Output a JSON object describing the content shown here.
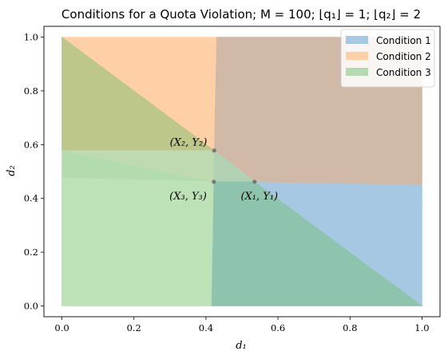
{
  "chart_data": {
    "type": "area",
    "title": "Conditions for a Quota Violation; M = 100; ⌊q₁⌋ = 1; ⌊q₂⌋ = 2",
    "xlabel": "d₁",
    "ylabel": "d₂",
    "xlim": [
      -0.05,
      1.05
    ],
    "ylim": [
      -0.04,
      1.04
    ],
    "x_ticks": [
      0.0,
      0.2,
      0.4,
      0.6,
      0.8,
      1.0
    ],
    "y_ticks": [
      0.0,
      0.2,
      0.4,
      0.6,
      0.8,
      1.0
    ],
    "x_tick_labels": [
      "0.0",
      "0.2",
      "0.4",
      "0.6",
      "0.8",
      "1.0"
    ],
    "y_tick_labels": [
      "0.0",
      "0.2",
      "0.4",
      "0.6",
      "0.8",
      "1.0"
    ],
    "grid": false,
    "legend_position": "top-right",
    "series": [
      {
        "name": "Condition 1",
        "color": "#a6c8e3",
        "polygons": [
          [
            [
              0.535,
              0.462
            ],
            [
              1.0,
              0.451
            ],
            [
              1.0,
              0.0
            ]
          ]
        ]
      },
      {
        "name": "Condition 2",
        "color": "#ffcfa5",
        "polygons": [
          [
            [
              0.0,
              1.0
            ],
            [
              0.43,
              1.0
            ],
            [
              0.423,
              0.578
            ],
            [
              0.0,
              0.578
            ]
          ]
        ]
      },
      {
        "name": "Condition 3",
        "color": "#b3dcae",
        "polygons": [
          [
            [
              0.0,
              1.0
            ],
            [
              0.535,
              0.462
            ],
            [
              1.0,
              0.0
            ],
            [
              0.0,
              0.0
            ]
          ]
        ]
      },
      {
        "name": "",
        "color": "#d0b9a6",
        "polygons": [
          [
            [
              0.43,
              1.0
            ],
            [
              1.0,
              1.0
            ],
            [
              1.0,
              0.451
            ],
            [
              0.535,
              0.462
            ],
            [
              0.423,
              0.578
            ]
          ]
        ]
      },
      {
        "name": "",
        "color": "#bec78a",
        "polygons": [
          [
            [
              0.0,
              1.0
            ],
            [
              0.423,
              0.578
            ],
            [
              0.0,
              0.578
            ]
          ]
        ]
      },
      {
        "name": "",
        "color": "#c0dab0",
        "polygons": [
          [
            [
              0.0,
              0.578
            ],
            [
              0.423,
              0.578
            ],
            [
              0.535,
              0.462
            ],
            [
              0.422,
              0.462
            ]
          ]
        ]
      },
      {
        "name": "",
        "color": "#b1d2b5",
        "polygons": [
          [
            [
              0.423,
              0.578
            ],
            [
              0.422,
              0.462
            ],
            [
              0.535,
              0.462
            ]
          ]
        ]
      },
      {
        "name": "",
        "color": "#bde2b8",
        "polygons": [
          [
            [
              0.0,
              0.476
            ],
            [
              0.422,
              0.462
            ],
            [
              0.416,
              0.0
            ],
            [
              0.0,
              0.0
            ]
          ]
        ]
      },
      {
        "name": "",
        "color": "#8ec3ae",
        "polygons": [
          [
            [
              0.422,
              0.462
            ],
            [
              0.535,
              0.462
            ],
            [
              1.0,
              0.0
            ],
            [
              0.416,
              0.0
            ]
          ]
        ]
      }
    ],
    "points": [
      {
        "label": "(X₂, Y₂)",
        "x": 0.423,
        "y": 0.578,
        "label_side": "upper-left"
      },
      {
        "label": "(X₃, Y₃)",
        "x": 0.422,
        "y": 0.462,
        "label_side": "lower-left"
      },
      {
        "label": "(X₁, Y₁)",
        "x": 0.535,
        "y": 0.462,
        "label_side": "lower-center"
      }
    ]
  }
}
